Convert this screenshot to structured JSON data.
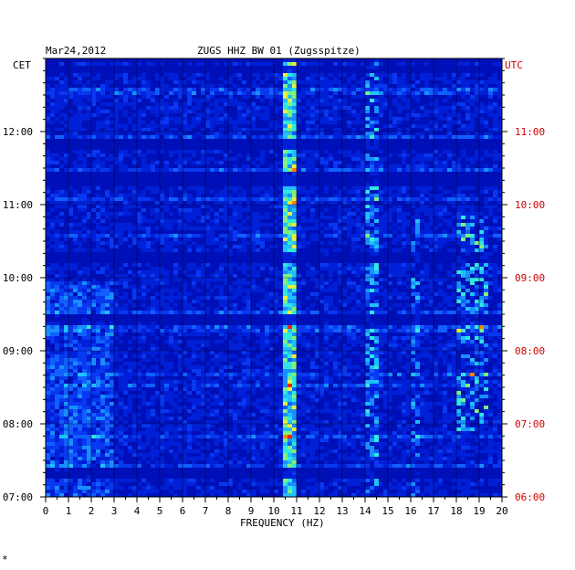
{
  "chart_data": {
    "type": "heatmap",
    "date": "Mar24,2012",
    "title": "ZUGS HHZ BW 01 (Zugsspitze)",
    "xlabel": "FREQUENCY (HZ)",
    "xlim": [
      0,
      20
    ],
    "x_ticks": [
      "0",
      "1",
      "2",
      "3",
      "4",
      "5",
      "6",
      "7",
      "8",
      "9",
      "10",
      "11",
      "12",
      "13",
      "14",
      "15",
      "16",
      "17",
      "18",
      "19",
      "20"
    ],
    "y_left_label": "CET",
    "y_right_label": "UTC",
    "y_left_ticks": [
      "12:00",
      "11:00",
      "10:00",
      "09:00",
      "08:00",
      "07:00"
    ],
    "y_right_ticks": [
      "11:00",
      "10:00",
      "09:00",
      "08:00",
      "07:00",
      "06:00"
    ],
    "time_range_cet": [
      "07:00",
      "13:00"
    ],
    "colors": {
      "background_band": "#0000c8",
      "low": "#1030e8",
      "mid": "#00b0ff",
      "high": "#40e0a0",
      "peak": "#ff3000",
      "utc_text": "#d00000"
    },
    "features": [
      {
        "name": "persistent line near 10.6 Hz",
        "freq_hz": 10.6,
        "cet_from": "07:00",
        "cet_to": "13:00"
      },
      {
        "name": "intermittent band near 14.2 Hz",
        "freq_hz": 14.2,
        "cet_from": "07:30",
        "cet_to": "12:50"
      },
      {
        "name": "broadband energy 18-19 Hz",
        "freq_hz_range": [
          18,
          19
        ],
        "cet_from": "07:45",
        "cet_to": "10:40"
      },
      {
        "name": "strong low-frequency noise",
        "freq_hz_range": [
          0,
          3
        ],
        "cet_from": "07:00",
        "cet_to": "10:00"
      }
    ]
  },
  "footer": {
    "mark": "*"
  }
}
